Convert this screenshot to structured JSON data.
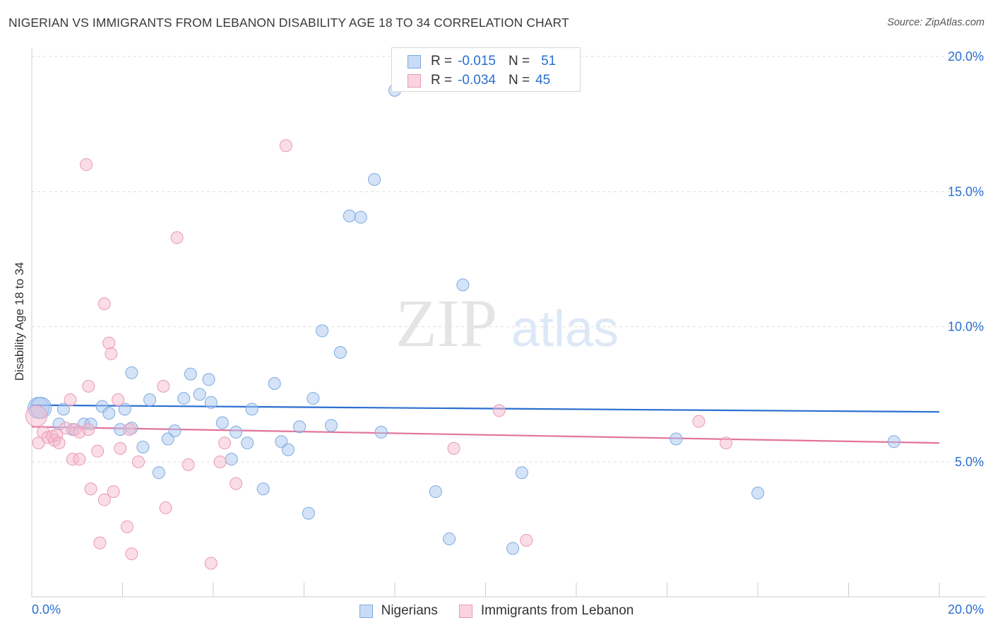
{
  "title": "NIGERIAN VS IMMIGRANTS FROM LEBANON DISABILITY AGE 18 TO 34 CORRELATION CHART",
  "source": "Source: ZipAtlas.com",
  "watermark": {
    "zip": "ZIP",
    "atlas": "atlas"
  },
  "legend": {
    "r_label": "R =",
    "n_label": "N =",
    "rows": [
      {
        "r": "-0.015",
        "n": "51"
      },
      {
        "r": "-0.034",
        "n": "45"
      }
    ]
  },
  "colors": {
    "blue_fill": "#aac8f0",
    "blue_stroke": "#7eaae0",
    "blue_line": "#2a6fd0",
    "pink_fill": "#f6bccd",
    "pink_stroke": "#e99ab4",
    "pink_line": "#e2739c",
    "axis_text": "#2a6fd0",
    "grid": "#dddddd"
  },
  "chart_data": {
    "type": "scatter",
    "title": "NIGERIAN VS IMMIGRANTS FROM LEBANON DISABILITY AGE 18 TO 34 CORRELATION CHART",
    "xlabel": "",
    "ylabel": "Disability Age 18 to 34",
    "xlim": [
      0,
      20
    ],
    "ylim": [
      0,
      20.5
    ],
    "x_tick_labels": [
      "0.0%",
      "20.0%"
    ],
    "y_ticks": [
      5,
      10,
      15,
      20
    ],
    "y_tick_labels": [
      "5.0%",
      "10.0%",
      "15.0%",
      "20.0%"
    ],
    "legend_placement": "top-center",
    "series": [
      {
        "name": "Nigerians",
        "color": "#7eaae0",
        "r": -0.015,
        "n": 51,
        "trend": [
          [
            0,
            7.1
          ],
          [
            20,
            6.85
          ]
        ],
        "points": [
          [
            0.15,
            7.0
          ],
          [
            0.2,
            7.0
          ],
          [
            0.6,
            6.4
          ],
          [
            0.7,
            6.95
          ],
          [
            0.9,
            6.2
          ],
          [
            1.15,
            6.4
          ],
          [
            1.3,
            6.4
          ],
          [
            1.55,
            7.05
          ],
          [
            1.7,
            6.8
          ],
          [
            1.95,
            6.2
          ],
          [
            2.05,
            6.95
          ],
          [
            2.2,
            8.3
          ],
          [
            2.45,
            5.55
          ],
          [
            2.6,
            7.3
          ],
          [
            2.8,
            4.6
          ],
          [
            3.0,
            5.85
          ],
          [
            3.15,
            6.15
          ],
          [
            3.35,
            7.35
          ],
          [
            3.5,
            8.25
          ],
          [
            3.7,
            7.5
          ],
          [
            3.9,
            8.05
          ],
          [
            3.95,
            7.2
          ],
          [
            4.2,
            6.45
          ],
          [
            4.4,
            5.1
          ],
          [
            4.5,
            6.1
          ],
          [
            4.75,
            5.7
          ],
          [
            4.85,
            6.95
          ],
          [
            5.1,
            4.0
          ],
          [
            5.35,
            7.9
          ],
          [
            5.5,
            5.75
          ],
          [
            5.65,
            5.45
          ],
          [
            5.9,
            6.3
          ],
          [
            6.1,
            3.1
          ],
          [
            6.2,
            7.35
          ],
          [
            6.4,
            9.85
          ],
          [
            6.6,
            6.35
          ],
          [
            6.8,
            9.05
          ],
          [
            7.0,
            14.1
          ],
          [
            7.25,
            14.05
          ],
          [
            7.55,
            15.45
          ],
          [
            7.7,
            6.1
          ],
          [
            8.0,
            18.75
          ],
          [
            8.9,
            3.9
          ],
          [
            9.2,
            2.15
          ],
          [
            9.5,
            11.55
          ],
          [
            10.6,
            1.8
          ],
          [
            10.8,
            4.6
          ],
          [
            14.2,
            5.85
          ],
          [
            16.0,
            3.85
          ],
          [
            19.0,
            5.75
          ],
          [
            2.2,
            6.25
          ]
        ]
      },
      {
        "name": "Immigrants from Lebanon",
        "color": "#e99ab4",
        "r": -0.034,
        "n": 45,
        "trend": [
          [
            0,
            6.3
          ],
          [
            20,
            5.7
          ]
        ],
        "points": [
          [
            0.1,
            6.7
          ],
          [
            0.15,
            5.7
          ],
          [
            0.25,
            6.1
          ],
          [
            0.35,
            5.9
          ],
          [
            0.45,
            5.95
          ],
          [
            0.5,
            5.8
          ],
          [
            0.55,
            6.0
          ],
          [
            0.6,
            5.7
          ],
          [
            0.75,
            6.25
          ],
          [
            0.85,
            7.3
          ],
          [
            0.9,
            5.1
          ],
          [
            0.95,
            6.2
          ],
          [
            1.05,
            6.1
          ],
          [
            1.05,
            5.1
          ],
          [
            1.25,
            6.2
          ],
          [
            1.2,
            16.0
          ],
          [
            1.25,
            7.8
          ],
          [
            1.3,
            4.0
          ],
          [
            1.45,
            5.4
          ],
          [
            1.5,
            2.0
          ],
          [
            1.6,
            3.6
          ],
          [
            1.6,
            10.85
          ],
          [
            1.7,
            9.4
          ],
          [
            1.75,
            9.0
          ],
          [
            1.8,
            3.9
          ],
          [
            1.9,
            7.3
          ],
          [
            1.95,
            5.5
          ],
          [
            2.1,
            2.6
          ],
          [
            2.15,
            6.2
          ],
          [
            2.2,
            1.6
          ],
          [
            2.35,
            5.0
          ],
          [
            2.9,
            7.8
          ],
          [
            2.95,
            3.3
          ],
          [
            3.2,
            13.3
          ],
          [
            3.45,
            4.9
          ],
          [
            3.95,
            1.25
          ],
          [
            4.15,
            5.0
          ],
          [
            4.25,
            5.7
          ],
          [
            4.5,
            4.2
          ],
          [
            5.6,
            16.7
          ],
          [
            9.3,
            5.5
          ],
          [
            10.3,
            6.9
          ],
          [
            10.9,
            2.1
          ],
          [
            14.7,
            6.5
          ],
          [
            15.3,
            5.7
          ]
        ]
      }
    ]
  },
  "bottom_legend": [
    "Nigerians",
    "Immigrants from Lebanon"
  ]
}
